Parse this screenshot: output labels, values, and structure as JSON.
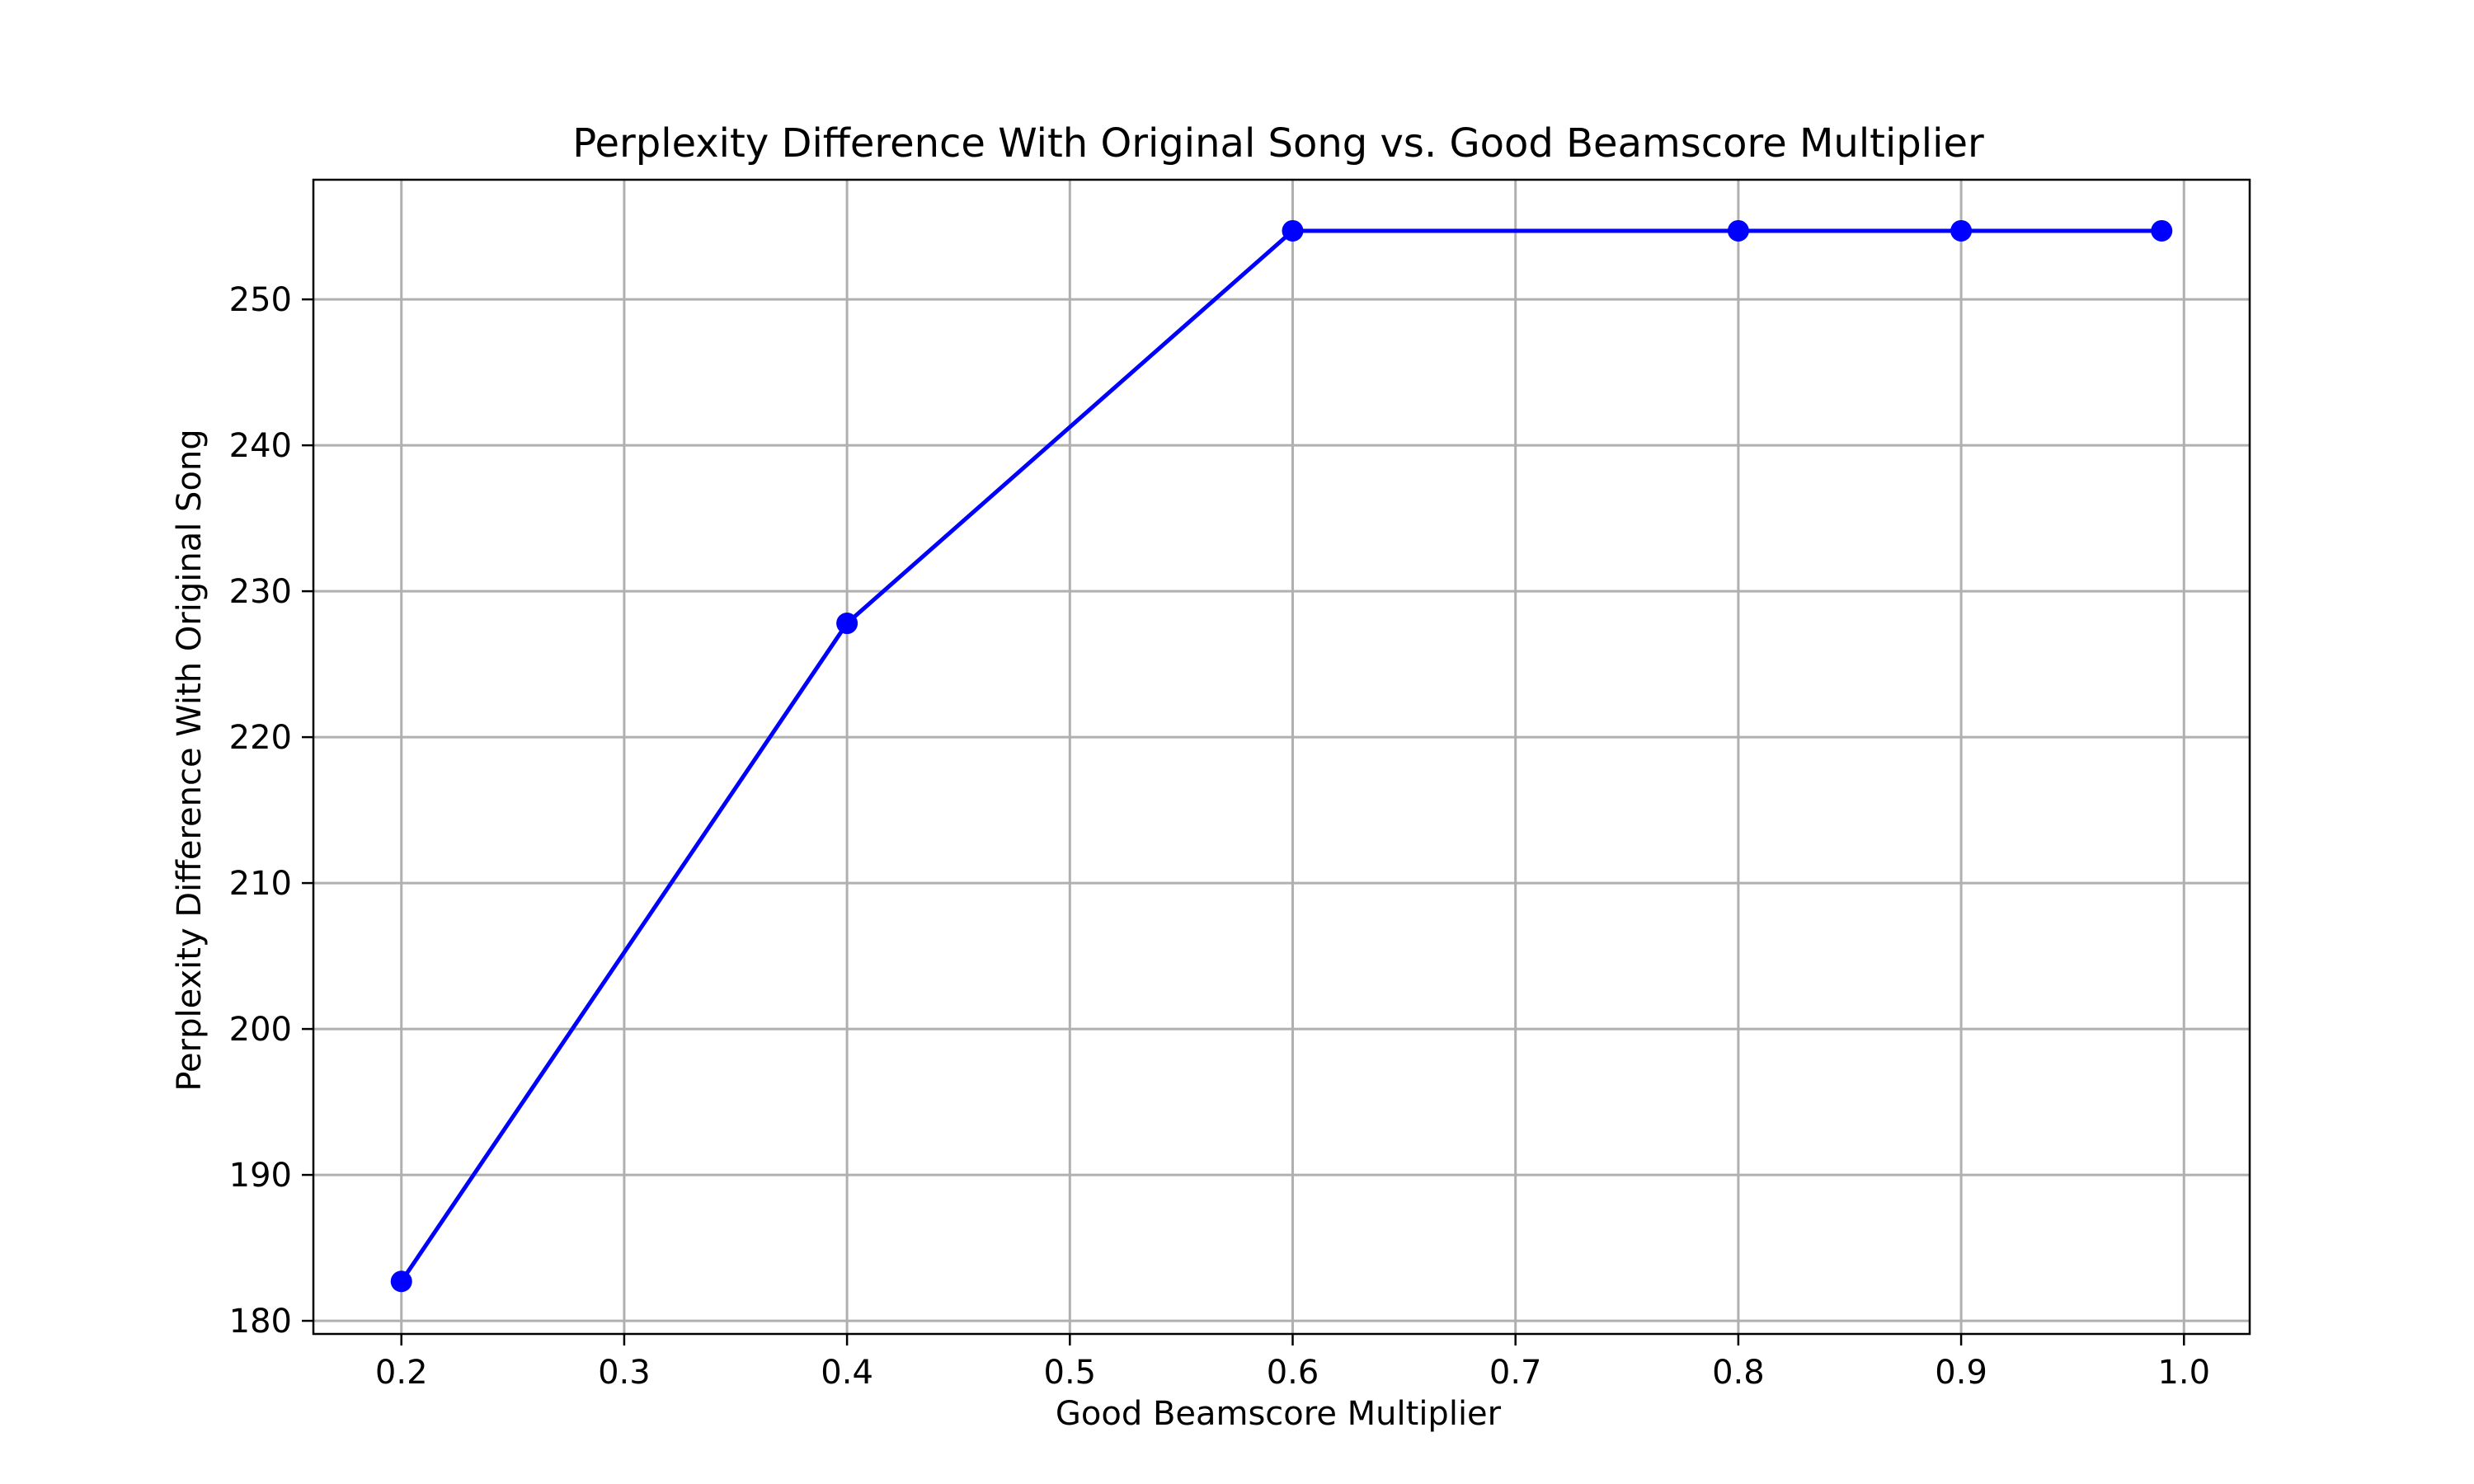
{
  "chart_data": {
    "type": "line",
    "title": "Perplexity Difference With Original Song vs. Good Beamscore Multiplier",
    "xlabel": "Good Beamscore Multiplier",
    "ylabel": "Perplexity Difference With Original Song",
    "x_ticks": [
      0.2,
      0.3,
      0.4,
      0.5,
      0.6,
      0.7,
      0.8,
      0.9,
      1.0
    ],
    "x_tick_labels": [
      "0.2",
      "0.3",
      "0.4",
      "0.5",
      "0.6",
      "0.7",
      "0.8",
      "0.9",
      "1.0"
    ],
    "y_ticks": [
      180,
      190,
      200,
      210,
      220,
      230,
      240,
      250
    ],
    "y_tick_labels": [
      "180",
      "190",
      "200",
      "210",
      "220",
      "230",
      "240",
      "250"
    ],
    "xlim": [
      0.1605,
      1.0295
    ],
    "ylim": [
      179.1,
      258.2
    ],
    "grid": true,
    "series": [
      {
        "color": "#0000ff",
        "marker": "circle",
        "x": [
          0.2,
          0.4,
          0.6,
          0.8,
          0.9,
          0.99
        ],
        "y": [
          182.7,
          227.8,
          254.7,
          254.7,
          254.7,
          254.7
        ]
      }
    ]
  }
}
